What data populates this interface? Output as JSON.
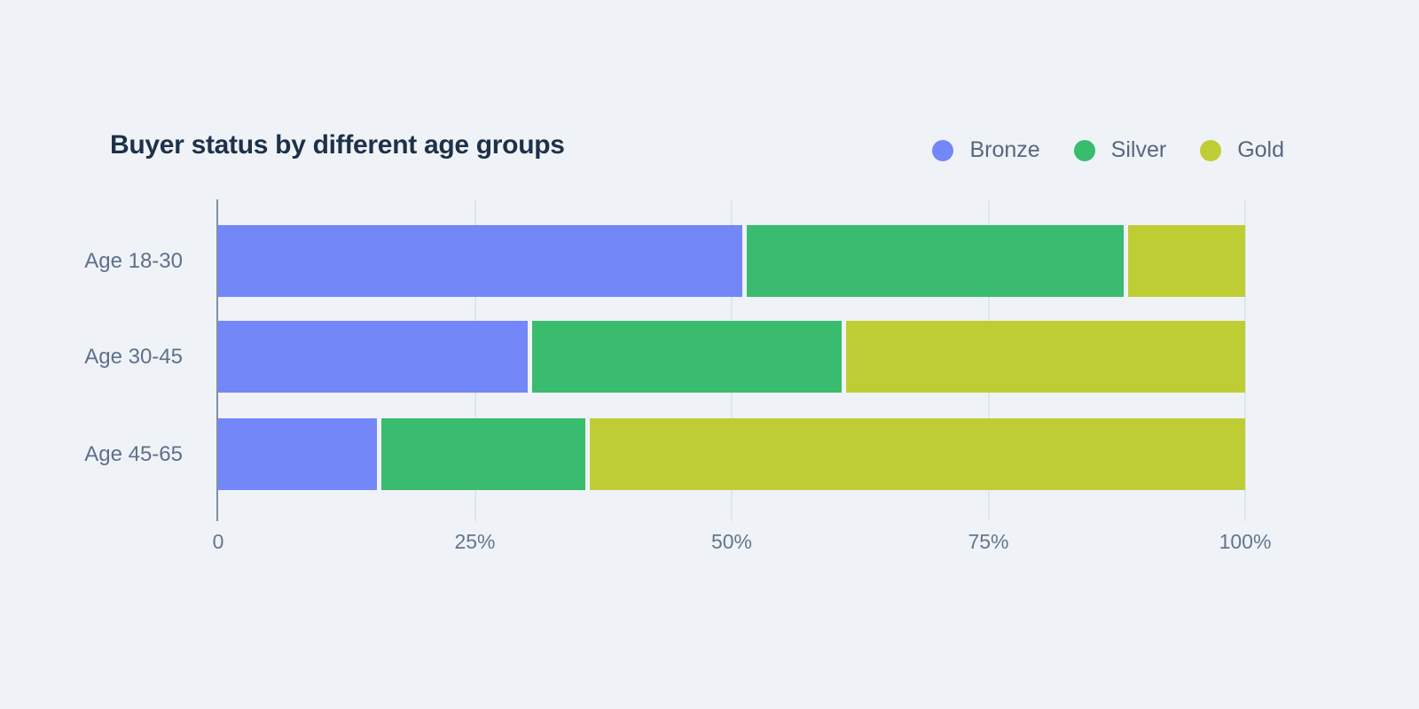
{
  "chart": {
    "title": "Buyer status by different age groups"
  },
  "chart_data": {
    "type": "bar",
    "orientation": "horizontal",
    "stacked": true,
    "stack_mode": "percent-100",
    "title": "Buyer status by different age groups",
    "categories": [
      "Age 18-30",
      "Age 30-45",
      "Age 45-65"
    ],
    "series": [
      {
        "name": "Bronze",
        "color": "#7487f8",
        "values": [
          51.5,
          30.4,
          15.6
        ]
      },
      {
        "name": "Silver",
        "color": "#3abc6e",
        "values": [
          37.0,
          30.4,
          20.0
        ]
      },
      {
        "name": "Gold",
        "color": "#bfcd35",
        "values": [
          11.5,
          39.2,
          64.4
        ]
      }
    ],
    "xlabel": "",
    "ylabel": "",
    "x_axis": {
      "range": [
        0,
        100
      ],
      "ticks": [
        0,
        25,
        50,
        75,
        100
      ],
      "tick_labels": [
        "0",
        "25%",
        "50%",
        "75%",
        "100%"
      ]
    },
    "legend": {
      "position": "top-right",
      "marker": "circle"
    },
    "grid": "vertical"
  },
  "colors": {
    "background": "#eff3f8",
    "title_text": "#1d3148",
    "axis_line": "#8191a5",
    "gridline": "#dfe6ed",
    "tick_label_text": "#64758c",
    "category_label_text": "#5f7089",
    "legend_label_text": "#57687d"
  }
}
